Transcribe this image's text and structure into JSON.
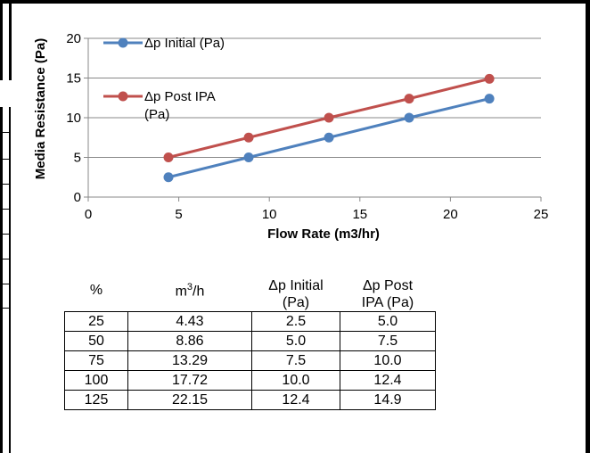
{
  "chart_data": {
    "type": "line",
    "title": "",
    "xlabel": "Flow Rate (m3/hr)",
    "ylabel": "Media Resistance (Pa)",
    "xlim": [
      0,
      25
    ],
    "ylim": [
      0,
      20
    ],
    "xticks": [
      0,
      5,
      10,
      15,
      20,
      25
    ],
    "yticks": [
      0,
      5,
      10,
      15,
      20
    ],
    "grid": "horizontal",
    "legend_position": "top-left",
    "series": [
      {
        "name": "Δp Initial (Pa)",
        "color": "#4f81bd",
        "x": [
          4.43,
          8.86,
          13.29,
          17.72,
          22.15
        ],
        "y": [
          2.5,
          5.0,
          7.5,
          10.0,
          12.4
        ]
      },
      {
        "name": "Δp Post IPA (Pa)",
        "name_lines": [
          "Δp Post IPA",
          "(Pa)"
        ],
        "color": "#c0504d",
        "x": [
          4.43,
          8.86,
          13.29,
          17.72,
          22.15
        ],
        "y": [
          5.0,
          7.5,
          10.0,
          12.4,
          14.9
        ]
      }
    ]
  },
  "table": {
    "headers": [
      {
        "lines": [
          "%"
        ]
      },
      {
        "lines": [
          "m",
          "3",
          "/h"
        ],
        "superscript": true
      },
      {
        "lines": [
          "Δp Initial",
          "(Pa)"
        ]
      },
      {
        "lines": [
          "Δp Post",
          "IPA (Pa)"
        ]
      }
    ],
    "rows": [
      [
        "25",
        "4.43",
        "2.5",
        "5.0"
      ],
      [
        "50",
        "8.86",
        "5.0",
        "7.5"
      ],
      [
        "75",
        "13.29",
        "7.5",
        "10.0"
      ],
      [
        "100",
        "17.72",
        "10.0",
        "12.4"
      ],
      [
        "125",
        "22.15",
        "12.4",
        "14.9"
      ]
    ]
  }
}
